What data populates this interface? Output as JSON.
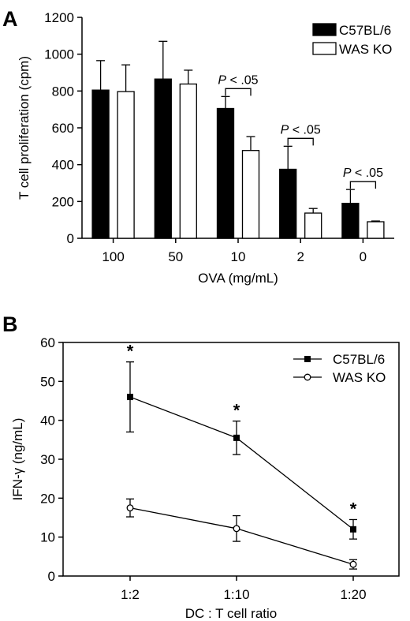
{
  "figure": {
    "panels": [
      "A",
      "B"
    ]
  },
  "chart_data": [
    {
      "type": "bar",
      "panel_label": "A",
      "xlabel": "OVA (mg/mL)",
      "ylabel": "T cell proliferation (cpm)",
      "ylim": [
        0,
        1200
      ],
      "yticks": [
        0,
        200,
        400,
        600,
        800,
        1000,
        1200
      ],
      "categories": [
        "100",
        "50",
        "10",
        "2",
        "0"
      ],
      "legend_position": "top-right",
      "series": [
        {
          "name": "C57BL/6",
          "color": "#000000",
          "values": [
            805,
            865,
            705,
            375,
            190
          ],
          "error": [
            160,
            205,
            65,
            125,
            75
          ]
        },
        {
          "name": "WAS KO",
          "color": "#ffffff",
          "values": [
            797,
            838,
            477,
            137,
            90
          ],
          "error": [
            145,
            75,
            75,
            25,
            4
          ]
        }
      ],
      "annotations": [
        {
          "category": "10",
          "text": "P < .05"
        },
        {
          "category": "2",
          "text": "P < .05"
        },
        {
          "category": "0",
          "text": "P < .05"
        }
      ]
    },
    {
      "type": "line",
      "panel_label": "B",
      "xlabel": "DC : T cell ratio",
      "ylabel": "IFN-γ (ng/mL)",
      "ylim": [
        0,
        60
      ],
      "yticks": [
        0,
        10,
        20,
        30,
        40,
        50,
        60
      ],
      "categories": [
        "1:2",
        "1:10",
        "1:20"
      ],
      "legend_position": "top-right",
      "series": [
        {
          "name": "C57BL/6",
          "marker": "filled-square",
          "values": [
            46,
            35.5,
            12
          ],
          "error": [
            9,
            4.3,
            2.5
          ]
        },
        {
          "name": "WAS KO",
          "marker": "open-circle",
          "values": [
            17.5,
            12.2,
            3
          ],
          "error": [
            2.3,
            3.3,
            1.2
          ]
        }
      ],
      "significance": [
        {
          "category": "1:2",
          "text": "*"
        },
        {
          "category": "1:10",
          "text": "*"
        },
        {
          "category": "1:20",
          "text": "*"
        }
      ]
    }
  ]
}
